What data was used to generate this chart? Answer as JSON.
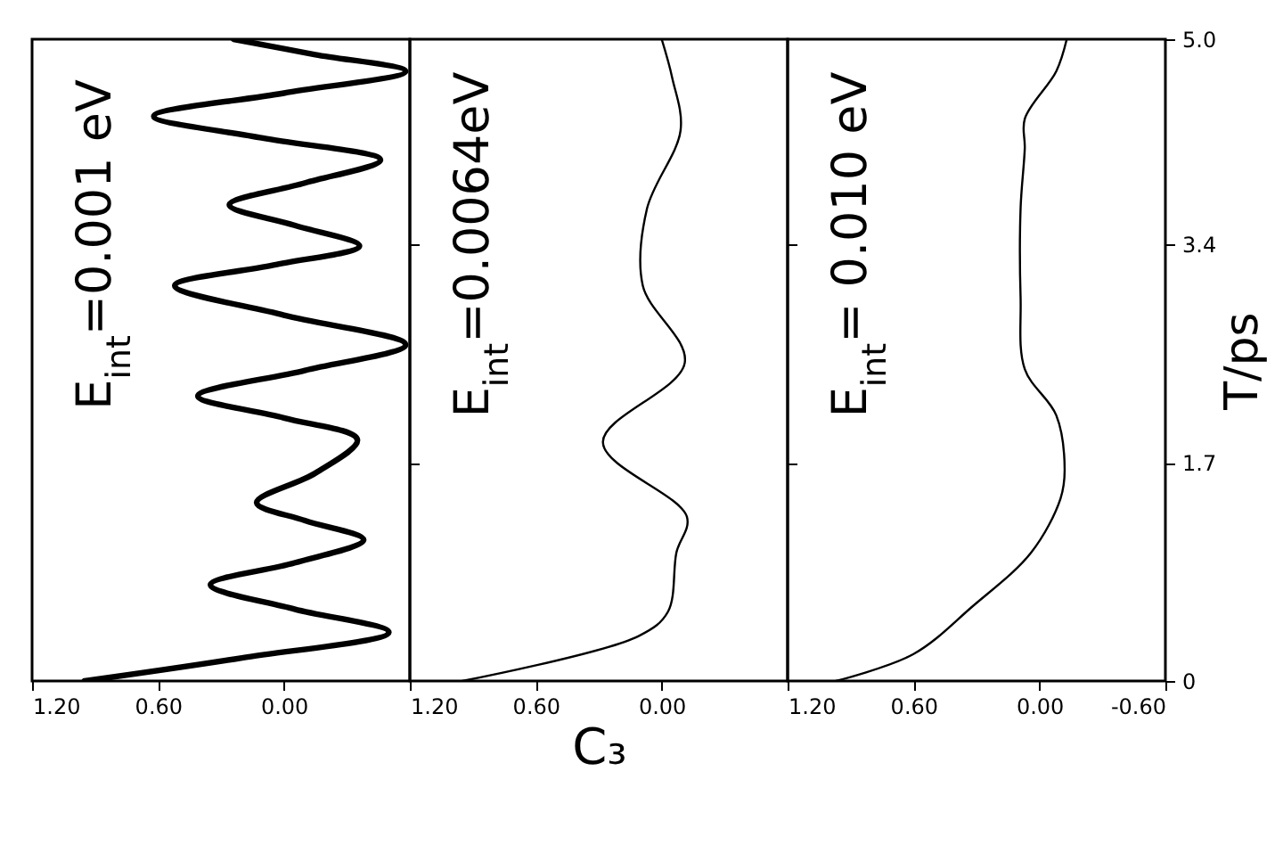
{
  "chart_data": [
    {
      "type": "line",
      "annotations": [
        "E$_{int}$=0.001  eV"
      ],
      "tick_labels": "x",
      "xlim": [
        1.2,
        -0.6
      ],
      "xticks": [
        {
          "value": 1.2,
          "label": "1.20"
        },
        {
          "value": 0.6,
          "label": "0.60"
        },
        {
          "value": 0,
          "label": "0.00"
        }
      ],
      "ylim": [
        0,
        5
      ],
      "yticks": [
        {
          "value": 1.7,
          "label": null
        },
        {
          "value": 3.4,
          "label": null
        }
      ],
      "x": [
        0.95,
        0.2,
        -0.5,
        -0.05,
        0.35,
        -0.05,
        -0.38,
        -0.1,
        0.13,
        -0.15,
        -0.35,
        0,
        0.41,
        -0.1,
        -0.58,
        0,
        0.52,
        0.05,
        -0.36,
        -0.05,
        0.26,
        -0.1,
        -0.46,
        0.1,
        0.62,
        0,
        -0.58,
        -0.15,
        0.24
      ],
      "series": [
        {
          "color": "#000000",
          "values": [
            0,
            0.18,
            0.38,
            0.56,
            0.75,
            0.92,
            1.1,
            1.25,
            1.39,
            1.62,
            1.88,
            2.05,
            2.22,
            2.42,
            2.62,
            2.85,
            3.08,
            3.24,
            3.39,
            3.55,
            3.71,
            3.88,
            4.06,
            4.23,
            4.4,
            4.58,
            4.75,
            4.88,
            5
          ]
        }
      ]
    },
    {
      "type": "line",
      "annotations": [
        "E$_{int}$=0.0064eV"
      ],
      "tick_labels": "x",
      "xlabel": "C₃",
      "xlim": [
        1.2,
        -0.6
      ],
      "xticks": [
        {
          "value": 1.2,
          "label": "1.20"
        },
        {
          "value": 0.6,
          "label": "0.60"
        },
        {
          "value": 0,
          "label": "0.00"
        }
      ],
      "ylim": [
        0,
        5
      ],
      "yticks": [
        {
          "value": 1.7,
          "label": null
        },
        {
          "value": 3.4,
          "label": null
        }
      ],
      "x": [
        0.95,
        0.11,
        -0.03,
        -0.07,
        -0.12,
        0.28,
        -0.11,
        0.09,
        0.07,
        -0.09,
        -0.05,
        0
      ],
      "series": [
        {
          "color": "#000000",
          "values": [
            0,
            0.35,
            0.54,
            1,
            1.28,
            1.86,
            2.48,
            3.08,
            3.68,
            4.29,
            4.7,
            5
          ]
        }
      ]
    },
    {
      "type": "line",
      "annotations": [
        "E$_{int}$= 0.010  eV"
      ],
      "ylabel": "T/ps",
      "xlim": [
        1.2,
        -0.6
      ],
      "xticks": [
        {
          "value": 1.2,
          "label": "1.20"
        },
        {
          "value": 0.6,
          "label": "0.60"
        },
        {
          "value": 0,
          "label": "0.00"
        },
        {
          "value": -0.6,
          "label": "-0.60"
        }
      ],
      "ylim": [
        0,
        5
      ],
      "yticks": [
        0,
        1.7,
        3.4,
        {
          "value": 5,
          "label": "5.0"
        }
      ],
      "x": [
        0.97,
        0.6,
        0.32,
        0.04,
        -0.1,
        -0.12,
        -0.08,
        0.07,
        0.09,
        0.09,
        0.07,
        0.07,
        -0.08,
        -0.13
      ],
      "series": [
        {
          "color": "#000000",
          "values": [
            0,
            0.21,
            0.58,
            1,
            1.42,
            1.65,
            2.07,
            2.43,
            2.99,
            3.68,
            4.15,
            4.38,
            4.75,
            5
          ]
        }
      ]
    }
  ]
}
